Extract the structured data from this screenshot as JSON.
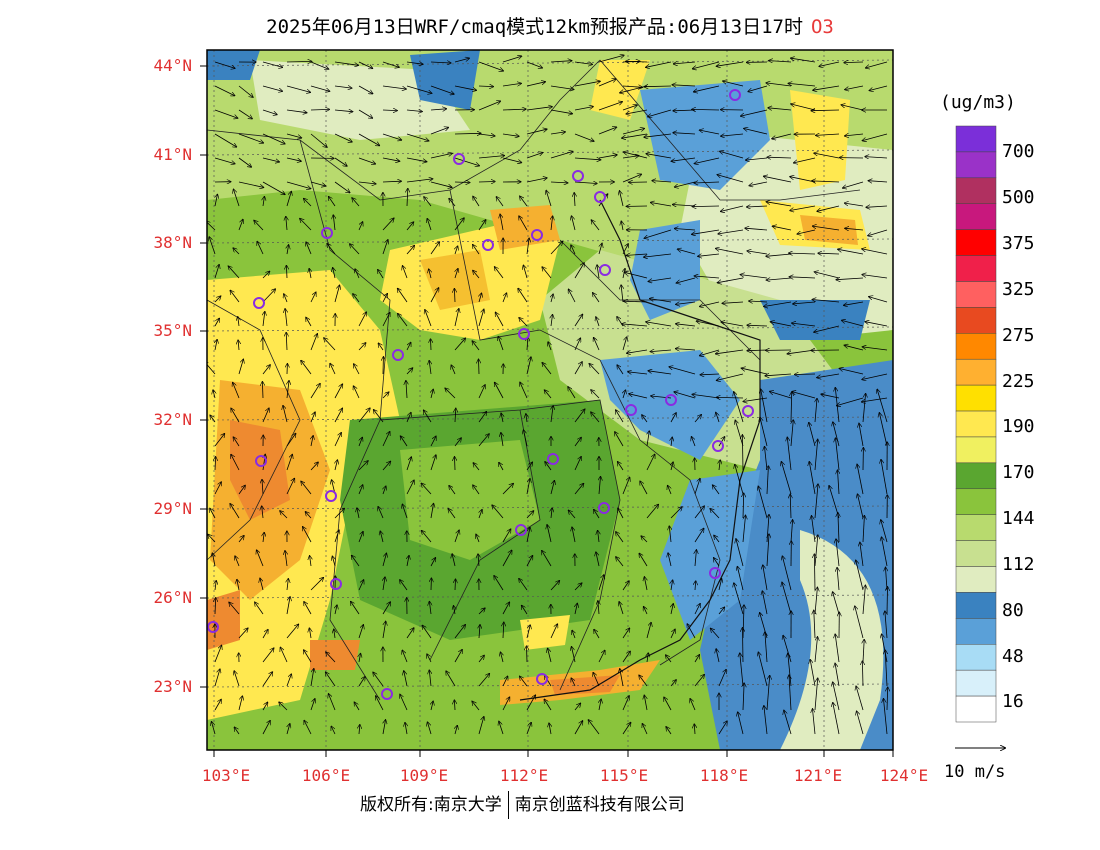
{
  "header": {
    "title": "2025年06月13日WRF/cmaq模式12km预报产品:06月13日17时",
    "species": "O3"
  },
  "axes": {
    "lat_labels": [
      "44°N",
      "41°N",
      "38°N",
      "35°N",
      "32°N",
      "29°N",
      "26°N",
      "23°N"
    ],
    "lon_labels": [
      "103°E",
      "106°E",
      "109°E",
      "112°E",
      "115°E",
      "118°E",
      "121°E",
      "124°E"
    ]
  },
  "colorbar": {
    "unit": "(ug/m3)",
    "labels": [
      "700",
      "500",
      "375",
      "325",
      "275",
      "225",
      "190",
      "170",
      "144",
      "112",
      "80",
      "48",
      "16"
    ],
    "colors": [
      "#7b2fd9",
      "#9a32c8",
      "#b03060",
      "#c8187d",
      "#ff0000",
      "#f0204a",
      "#ff6060",
      "#e84a20",
      "#ff8800",
      "#ffb030",
      "#ffe000",
      "#ffe850",
      "#f0f060",
      "#5aa630",
      "#8ac43c",
      "#b8da6e",
      "#c8e090",
      "#e0ecc0",
      "#3a82c0",
      "#5aa0d8",
      "#a8dcf5",
      "#d8f0fa",
      "#ffffff"
    ]
  },
  "wind_scale": {
    "label": "10 m/s"
  },
  "footer": {
    "copyright_left": "版权所有:南京大学",
    "copyright_right": "南京创蓝科技有限公司"
  },
  "legend_colors": {
    "ocean": "#4a8cc8",
    "low": "#a8dcf5",
    "mid": "#8ac43c",
    "high": "#f5c030",
    "peak": "#ee8a30",
    "station_marker": "#8a2be2"
  }
}
